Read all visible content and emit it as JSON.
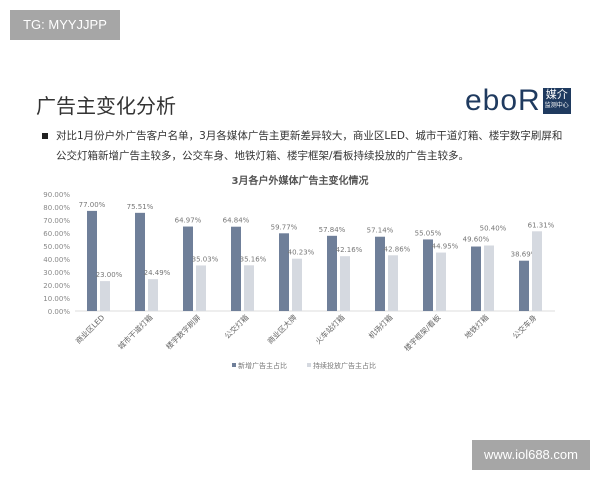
{
  "watermark_top": "TG: MYYJJPP",
  "watermark_bottom": "www.iol688.com",
  "slide": {
    "title": "广告主变化分析",
    "logo_text": "eboR",
    "logo_badge": "媒介",
    "logo_badge_sub": "监测中心",
    "bullet_line1": "对比1月份户外广告客户名单，3月各媒体广告主更新差异较大，商业区LED、城市干道灯箱、楼宇数字刷屏和",
    "bullet_line2": "公交灯箱新增广告主较多，公交车身、地铁灯箱、楼宇框架/看板持续投放的广告主较多。"
  },
  "chart_data": {
    "type": "bar",
    "title": "3月各户外媒体广告主变化情况",
    "categories": [
      "商业区LED",
      "城市干道灯箱",
      "楼宇数字刷屏",
      "公交灯箱",
      "商业区大牌",
      "火车站灯箱",
      "机场灯箱",
      "楼宇框架/看板",
      "地铁灯箱",
      "公交车身"
    ],
    "series": [
      {
        "name": "新增广告主占比",
        "color": "#6f7f99",
        "values": [
          77.0,
          75.51,
          64.97,
          64.84,
          59.77,
          57.84,
          57.14,
          55.05,
          49.6,
          38.69
        ],
        "labels": [
          "77.00%",
          "75.51%",
          "64.97%",
          "64.84%",
          "59.77%",
          "57.84%",
          "57.14%",
          "55.05%",
          "49.60%",
          "38.69%"
        ]
      },
      {
        "name": "持续投放广告主占比",
        "color": "#d5d9e0",
        "values": [
          23.0,
          24.49,
          35.03,
          35.16,
          40.23,
          42.16,
          42.86,
          44.95,
          50.4,
          61.31
        ],
        "labels": [
          "23.00%",
          "24.49%",
          "35.03%",
          "35.16%",
          "40.23%",
          "42.16%",
          "42.86%",
          "44.95%",
          "50.40%",
          "61.31%"
        ]
      }
    ],
    "yticks": [
      "0.00%",
      "10.00%",
      "20.00%",
      "30.00%",
      "40.00%",
      "50.00%",
      "60.00%",
      "70.00%",
      "80.00%",
      "90.00%"
    ],
    "ylim": [
      0,
      90
    ],
    "grid": false,
    "legend": "bottom"
  }
}
